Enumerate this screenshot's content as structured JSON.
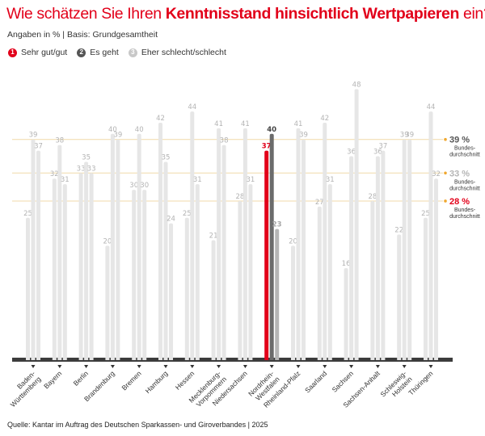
{
  "header": {
    "title_prefix": "Wie schätzen Sie Ihren ",
    "title_bold": "Kenntnisstand hinsichtlich Wertpapieren",
    "title_suffix": " ein?",
    "subtitle": "Angaben in % | Basis: Grundgesamtheit"
  },
  "legend": [
    {
      "number": "1",
      "label": "Sehr gut/gut",
      "color": "#e2001a"
    },
    {
      "number": "2",
      "label": "Es geht",
      "color": "#555555"
    },
    {
      "number": "3",
      "label": "Eher schlecht/schlecht",
      "color": "#c8c8c8"
    }
  ],
  "source": "Quelle: Kantar im Auftrag des Deutschen Sparkassen- und Giroverbandes | 2025",
  "colors": {
    "default_bar": "#e6e6e6",
    "highlight_series1": "#e2001a",
    "highlight_series2": "#6b6b6b",
    "highlight_series3": "#b5b5b5",
    "avg_line": "#f0d9a8",
    "baseline": "#3c3c3c",
    "avg_dot": "#f0a830"
  },
  "chart_data": {
    "type": "bar",
    "title": "Wie schätzen Sie Ihren Kenntnisstand hinsichtlich Wertpapieren ein?",
    "subtitle": "Angaben in % | Basis: Grundgesamtheit",
    "xlabel": "",
    "ylabel": "",
    "ylim": [
      0,
      50
    ],
    "grid": false,
    "highlight_category": "Nordrhein-Westfalen",
    "categories": [
      "Baden-Württemberg",
      "Bayern",
      "Berlin",
      "Brandenburg",
      "Bremen",
      "Hamburg",
      "Hessen",
      "Mecklenburg-Vorpommern",
      "Niedersachsen",
      "Nordrhein-Westfalen",
      "Rheinland-Pfalz",
      "Saarland",
      "Sachsen",
      "Sachsen-Anhalt",
      "Schleswig-Holstein",
      "Thüringen"
    ],
    "category_labels": [
      [
        "Baden-",
        "Württemberg"
      ],
      [
        "Bayern"
      ],
      [
        "Berlin"
      ],
      [
        "Brandenburg"
      ],
      [
        "Bremen"
      ],
      [
        "Hamburg"
      ],
      [
        "Hessen"
      ],
      [
        "Mecklenburg-",
        "Vorpommern"
      ],
      [
        "Niedersachsen"
      ],
      [
        "Nordrhein-",
        "Westfalen"
      ],
      [
        "Rheinland-Pfalz"
      ],
      [
        "Saarland"
      ],
      [
        "Sachsen"
      ],
      [
        "Sachsen-Anhalt"
      ],
      [
        "Schleswig-",
        "Holstein"
      ],
      [
        "Thüringen"
      ]
    ],
    "series": [
      {
        "name": "Sehr gut/gut",
        "values": [
          25,
          32,
          33,
          20,
          30,
          42,
          25,
          21,
          28,
          37,
          20,
          27,
          16,
          28,
          22,
          25
        ]
      },
      {
        "name": "Es geht",
        "values": [
          39,
          38,
          35,
          40,
          40,
          35,
          44,
          41,
          41,
          40,
          41,
          42,
          36,
          36,
          39,
          44
        ]
      },
      {
        "name": "Eher schlecht/schlecht",
        "values": [
          37,
          31,
          33,
          39,
          30,
          24,
          31,
          38,
          31,
          23,
          39,
          31,
          48,
          37,
          39,
          32
        ]
      }
    ],
    "averages": [
      {
        "series": "Es geht",
        "value": 39,
        "label": "39 %",
        "sublabel": [
          "Bundes-",
          "durchschnitt"
        ],
        "color": "#555555"
      },
      {
        "series": "Eher schlecht/schlecht",
        "value": 33,
        "label": "33 %",
        "sublabel": [
          "Bundes-",
          "durchschnitt"
        ],
        "color": "#b5b5b5"
      },
      {
        "series": "Sehr gut/gut",
        "value": 28,
        "label": "28 %",
        "sublabel": [
          "Bundes-",
          "durchschnitt"
        ],
        "color": "#e2001a"
      }
    ],
    "legend_position": "top-left"
  }
}
